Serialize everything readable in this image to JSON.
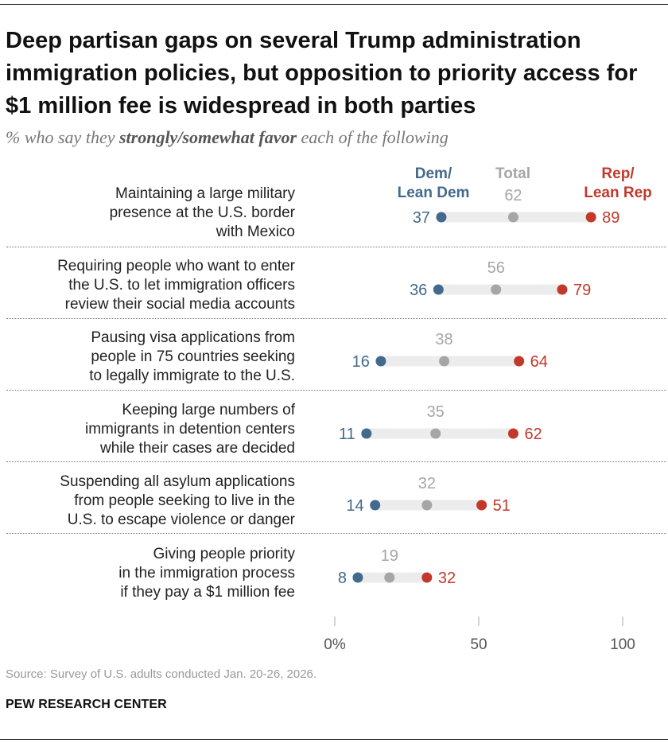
{
  "title": "Deep partisan gaps on several Trump administration immigration policies, but opposition to priority access for $1 million fee is widespread in both parties",
  "subtitle_pre": "% who say they ",
  "subtitle_bold": "strongly/somewhat favor",
  "subtitle_post": " each of the following",
  "source": "Source: Survey of U.S. adults conducted Jan. 20-26, 2026.",
  "brand": "PEW RESEARCH CENTER",
  "colors": {
    "dem": "#436a8c",
    "total": "#a6a6a6",
    "rep": "#c2392b",
    "bar": "#ececec"
  },
  "chart_data": {
    "type": "dot",
    "legend": {
      "dem": "Dem/ Lean Dem",
      "total": "Total",
      "rep": "Rep/ Lean Rep"
    },
    "xlim": [
      0,
      100
    ],
    "xticks": [
      "0%",
      "50",
      "100"
    ],
    "categories": [
      "Maintaining a large military presence at the U.S. border with Mexico",
      "Requiring people who want to enter the U.S. to let immigration officers review their social media accounts",
      "Pausing visa applications from people in 75 countries seeking to legally immigrate to the U.S.",
      "Keeping large numbers of immigrants in detention centers while their cases are decided",
      "Suspending all asylum applications from people seeking to live in the U.S. to escape violence or danger",
      "Giving people priority in the immigration process if they pay a $1 million fee"
    ],
    "category_lines": [
      [
        "Maintaining a large military",
        "presence at the U.S. border",
        "with Mexico"
      ],
      [
        "Requiring people who want to enter",
        "the U.S. to let immigration officers",
        "review their social media accounts"
      ],
      [
        "Pausing visa applications from",
        "people in 75 countries seeking",
        "to legally immigrate to the U.S."
      ],
      [
        "Keeping large numbers of",
        "immigrants in detention centers",
        "while their cases are decided"
      ],
      [
        "Suspending all asylum applications",
        "from people seeking to live in the",
        "U.S. to escape violence or danger"
      ],
      [
        "Giving people priority",
        "in the immigration process",
        "if they pay a $1 million fee"
      ]
    ],
    "series": [
      {
        "name": "Dem/Lean Dem",
        "key": "dem",
        "values": [
          37,
          36,
          16,
          11,
          14,
          8
        ]
      },
      {
        "name": "Total",
        "key": "total",
        "values": [
          62,
          56,
          38,
          35,
          32,
          19
        ]
      },
      {
        "name": "Rep/Lean Rep",
        "key": "rep",
        "values": [
          89,
          79,
          64,
          62,
          51,
          32
        ]
      }
    ]
  }
}
